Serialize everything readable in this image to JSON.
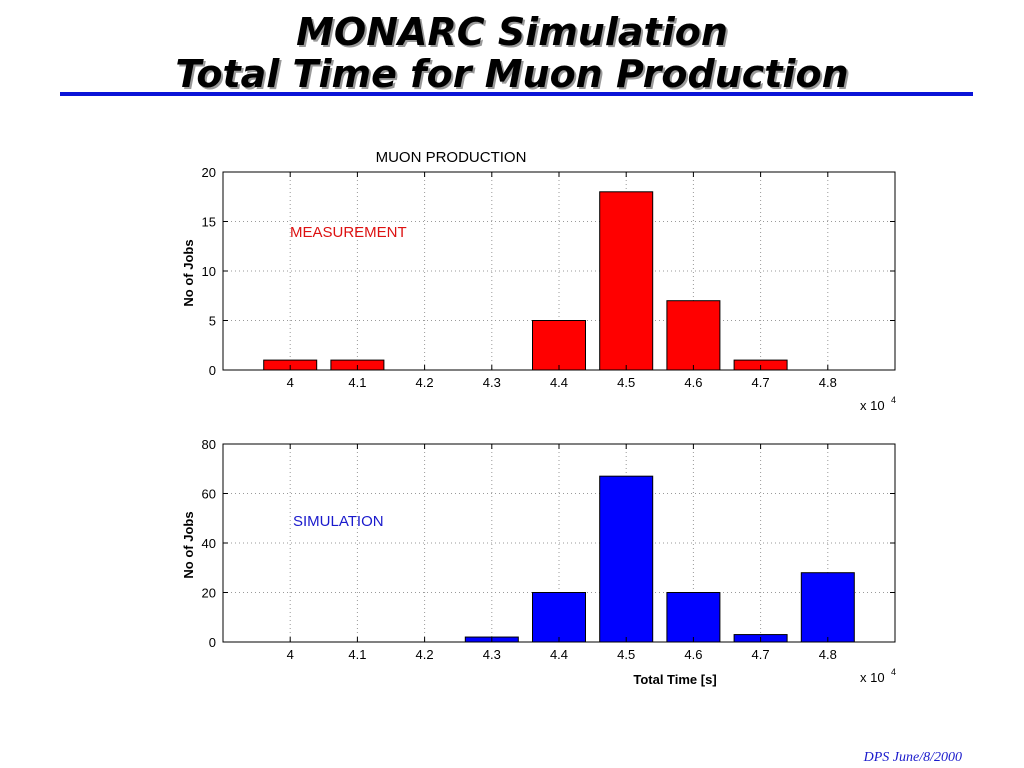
{
  "slide": {
    "title_line1": "MONARC Simulation",
    "title_line2": "Total Time for Muon Production",
    "footer": "DPS June/8/2000",
    "rule_color": "#0a14d8"
  },
  "chart_data": [
    {
      "type": "bar",
      "title": "MUON PRODUCTION",
      "annotation": "MEASUREMENT",
      "annotation_color": "#dd1111",
      "bar_color": "#ff0000",
      "xlabel": "",
      "ylabel": "No of Jobs",
      "x_multiplier": "x 10",
      "x_multiplier_exp": "4",
      "xlim": [
        3.9,
        4.9
      ],
      "ylim": [
        0,
        20
      ],
      "x_ticks": [
        "4",
        "4.1",
        "4.2",
        "4.3",
        "4.4",
        "4.5",
        "4.6",
        "4.7",
        "4.8"
      ],
      "y_ticks": [
        "0",
        "5",
        "10",
        "15",
        "20"
      ],
      "x": [
        4.0,
        4.1,
        4.2,
        4.3,
        4.4,
        4.5,
        4.6,
        4.7,
        4.8
      ],
      "values": [
        1,
        1,
        0,
        0,
        5,
        18,
        7,
        1,
        0
      ],
      "grid": true
    },
    {
      "type": "bar",
      "title": "",
      "annotation": "SIMULATION",
      "annotation_color": "#1a1acc",
      "bar_color": "#0000ff",
      "xlabel": "Total Time [s]",
      "ylabel": "No of Jobs",
      "x_multiplier": "x 10",
      "x_multiplier_exp": "4",
      "xlim": [
        3.9,
        4.9
      ],
      "ylim": [
        0,
        80
      ],
      "x_ticks": [
        "4",
        "4.1",
        "4.2",
        "4.3",
        "4.4",
        "4.5",
        "4.6",
        "4.7",
        "4.8"
      ],
      "y_ticks": [
        "0",
        "20",
        "40",
        "60",
        "80"
      ],
      "x": [
        4.0,
        4.1,
        4.2,
        4.3,
        4.4,
        4.5,
        4.6,
        4.7,
        4.8
      ],
      "values": [
        0,
        0,
        0,
        2,
        20,
        67,
        20,
        3,
        28
      ],
      "grid": true
    }
  ]
}
